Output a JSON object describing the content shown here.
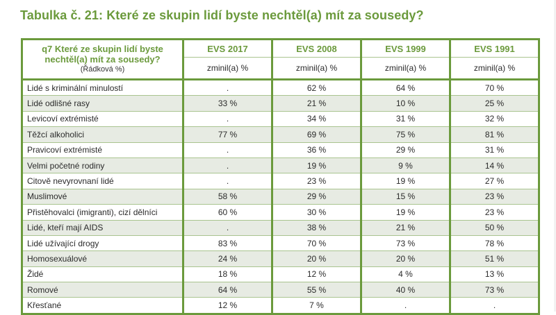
{
  "title": "Tabulka č. 21: Které ze skupin lidí byste nechtěl(a) mít za sousedy?",
  "table": {
    "question": "q7 Které ze skupin lidí byste nechtěl(a) mít za sousedy?",
    "question_note": "(Řádková %)",
    "columns": [
      "EVS 2017",
      "EVS 2008",
      "EVS 1999",
      "EVS 1991"
    ],
    "subheader": "zminil(a) %",
    "rows": [
      {
        "label": "Lidé s kriminální minulostí",
        "values": [
          ".",
          "62 %",
          "64 %",
          "70 %"
        ]
      },
      {
        "label": "Lidé odlišné rasy",
        "values": [
          "33 %",
          "21 %",
          "10 %",
          "25 %"
        ]
      },
      {
        "label": "Levicoví extrémisté",
        "values": [
          ".",
          "34 %",
          "31 %",
          "32 %"
        ]
      },
      {
        "label": "Těžcí alkoholici",
        "values": [
          "77 %",
          "69 %",
          "75 %",
          "81 %"
        ]
      },
      {
        "label": "Pravicoví extrémisté",
        "values": [
          ".",
          "36 %",
          "29 %",
          "31 %"
        ]
      },
      {
        "label": "Velmi početné rodiny",
        "values": [
          ".",
          "19 %",
          "9 %",
          "14 %"
        ]
      },
      {
        "label": "Citově nevyrovnaní lidé",
        "values": [
          ".",
          "23 %",
          "19 %",
          "27 %"
        ]
      },
      {
        "label": "Muslimové",
        "values": [
          "58 %",
          "29 %",
          "15 %",
          "23 %"
        ]
      },
      {
        "label": "Přistěhovalci (imigranti), cizí dělníci",
        "values": [
          "60 %",
          "30 %",
          "19 %",
          "23 %"
        ]
      },
      {
        "label": "Lidé, kteří mají AIDS",
        "values": [
          ".",
          "38 %",
          "21 %",
          "50 %"
        ]
      },
      {
        "label": "Lidé užívající drogy",
        "values": [
          "83 %",
          "70 %",
          "73 %",
          "78 %"
        ]
      },
      {
        "label": "Homosexuálové",
        "values": [
          "24 %",
          "20 %",
          "20 %",
          "51 %"
        ]
      },
      {
        "label": "Židé",
        "values": [
          "18 %",
          "12 %",
          "4 %",
          "13 %"
        ]
      },
      {
        "label": "Romové",
        "values": [
          "64 %",
          "55 %",
          "40 %",
          "73 %"
        ]
      },
      {
        "label": "Křesťané",
        "values": [
          "12 %",
          "7 %",
          ".",
          "."
        ]
      }
    ]
  },
  "colors": {
    "accent": "#6b9a3c",
    "row_shade": "#e7ebe3"
  }
}
